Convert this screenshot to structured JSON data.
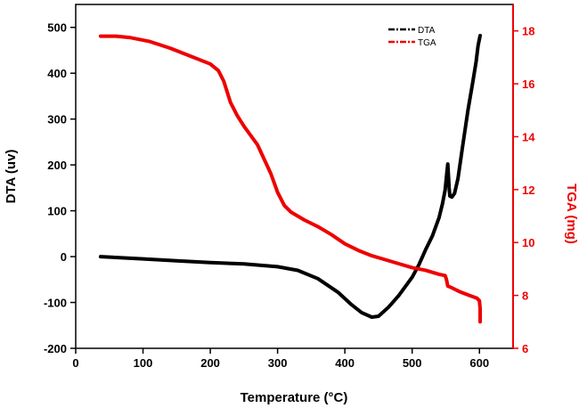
{
  "chart_data": {
    "type": "line",
    "title": "",
    "xlabel": "Temperature (°C)",
    "ylabel_left": "DTA (uv)",
    "ylabel_right": "TGA (mg)",
    "xlim": [
      0,
      650
    ],
    "ylim_left": [
      -200,
      550
    ],
    "ylim_right": [
      6,
      19
    ],
    "x_ticks": [
      0,
      100,
      200,
      300,
      400,
      500,
      600
    ],
    "y_left_ticks": [
      -200,
      -100,
      0,
      100,
      200,
      300,
      400,
      500
    ],
    "y_right_ticks": [
      6,
      8,
      10,
      12,
      14,
      16,
      18
    ],
    "x_tick_labels": [
      "0",
      "100",
      "200",
      "300",
      "400",
      "500",
      "600"
    ],
    "y_left_tick_labels": [
      "-200",
      "-100",
      "0",
      "100",
      "200",
      "300",
      "400",
      "500"
    ],
    "y_right_tick_labels": [
      "6",
      "8",
      "10",
      "12",
      "14",
      "16",
      "18"
    ],
    "legend_position": "top-right",
    "colors": {
      "DTA": "#000000",
      "TGA": "#ee0000",
      "axis_right": "#ee0000"
    },
    "series": [
      {
        "name": "DTA",
        "axis": "left",
        "points": [
          [
            37,
            0
          ],
          [
            100,
            -5
          ],
          [
            150,
            -9
          ],
          [
            200,
            -13
          ],
          [
            250,
            -16
          ],
          [
            300,
            -22
          ],
          [
            330,
            -30
          ],
          [
            360,
            -48
          ],
          [
            390,
            -78
          ],
          [
            410,
            -105
          ],
          [
            425,
            -122
          ],
          [
            440,
            -132
          ],
          [
            450,
            -130
          ],
          [
            465,
            -110
          ],
          [
            480,
            -85
          ],
          [
            500,
            -45
          ],
          [
            510,
            -18
          ],
          [
            520,
            15
          ],
          [
            530,
            45
          ],
          [
            540,
            85
          ],
          [
            545,
            115
          ],
          [
            549,
            145
          ],
          [
            552,
            190
          ],
          [
            553,
            202
          ],
          [
            555,
            150
          ],
          [
            556,
            132
          ],
          [
            559,
            130
          ],
          [
            563,
            138
          ],
          [
            568,
            170
          ],
          [
            575,
            240
          ],
          [
            583,
            320
          ],
          [
            590,
            380
          ],
          [
            595,
            425
          ],
          [
            598,
            460
          ],
          [
            601,
            482
          ]
        ]
      },
      {
        "name": "TGA",
        "axis": "right",
        "points": [
          [
            37,
            17.8
          ],
          [
            60,
            17.8
          ],
          [
            80,
            17.75
          ],
          [
            110,
            17.6
          ],
          [
            140,
            17.35
          ],
          [
            170,
            17.05
          ],
          [
            200,
            16.75
          ],
          [
            212,
            16.5
          ],
          [
            220,
            16.1
          ],
          [
            230,
            15.3
          ],
          [
            240,
            14.8
          ],
          [
            250,
            14.4
          ],
          [
            270,
            13.7
          ],
          [
            290,
            12.6
          ],
          [
            300,
            11.9
          ],
          [
            310,
            11.4
          ],
          [
            320,
            11.15
          ],
          [
            340,
            10.85
          ],
          [
            360,
            10.6
          ],
          [
            380,
            10.3
          ],
          [
            400,
            9.95
          ],
          [
            420,
            9.7
          ],
          [
            440,
            9.5
          ],
          [
            460,
            9.35
          ],
          [
            480,
            9.2
          ],
          [
            500,
            9.05
          ],
          [
            520,
            8.95
          ],
          [
            540,
            8.8
          ],
          [
            549,
            8.75
          ],
          [
            551,
            8.6
          ],
          [
            553,
            8.35
          ],
          [
            558,
            8.3
          ],
          [
            570,
            8.15
          ],
          [
            585,
            8.0
          ],
          [
            596,
            7.9
          ],
          [
            600,
            7.8
          ],
          [
            601,
            7.5
          ],
          [
            601,
            7.0
          ]
        ]
      }
    ]
  }
}
